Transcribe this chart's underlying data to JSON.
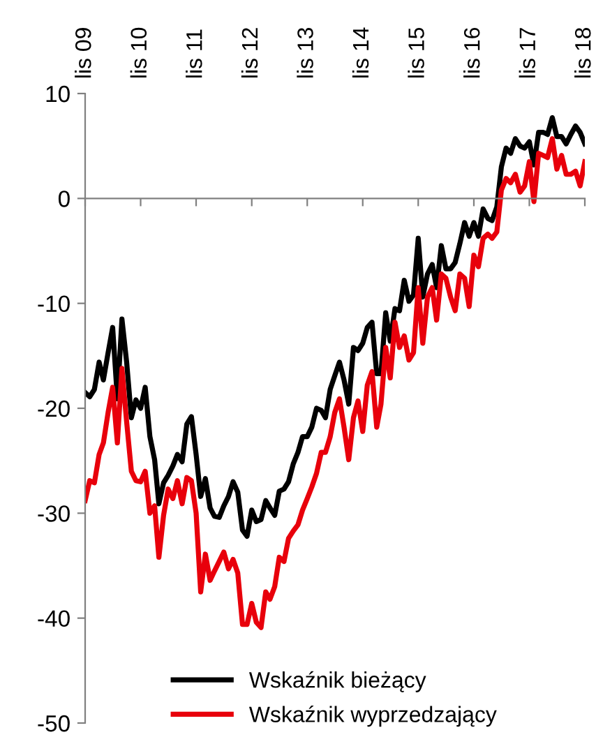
{
  "chart_data": {
    "type": "line",
    "x": [
      "2009-11",
      "2009-12",
      "2010-01",
      "2010-02",
      "2010-03",
      "2010-04",
      "2010-05",
      "2010-06",
      "2010-07",
      "2010-08",
      "2010-09",
      "2010-10",
      "2010-11",
      "2010-12",
      "2011-01",
      "2011-02",
      "2011-03",
      "2011-04",
      "2011-05",
      "2011-06",
      "2011-07",
      "2011-08",
      "2011-09",
      "2011-10",
      "2011-11",
      "2011-12",
      "2012-01",
      "2012-02",
      "2012-03",
      "2012-04",
      "2012-05",
      "2012-06",
      "2012-07",
      "2012-08",
      "2012-09",
      "2012-10",
      "2012-11",
      "2012-12",
      "2013-01",
      "2013-02",
      "2013-03",
      "2013-04",
      "2013-05",
      "2013-06",
      "2013-07",
      "2013-08",
      "2013-09",
      "2013-10",
      "2013-11",
      "2013-12",
      "2014-01",
      "2014-02",
      "2014-03",
      "2014-04",
      "2014-05",
      "2014-06",
      "2014-07",
      "2014-08",
      "2014-09",
      "2014-10",
      "2014-11",
      "2014-12",
      "2015-01",
      "2015-02",
      "2015-03",
      "2015-04",
      "2015-05",
      "2015-06",
      "2015-07",
      "2015-08",
      "2015-09",
      "2015-10",
      "2015-11",
      "2015-12",
      "2016-01",
      "2016-02",
      "2016-03",
      "2016-04",
      "2016-05",
      "2016-06",
      "2016-07",
      "2016-08",
      "2016-09",
      "2016-10",
      "2016-11",
      "2016-12",
      "2017-01",
      "2017-02",
      "2017-03",
      "2017-04",
      "2017-05",
      "2017-06",
      "2017-07",
      "2017-08",
      "2017-09",
      "2017-10",
      "2017-11",
      "2017-12",
      "2018-01",
      "2018-02",
      "2018-03",
      "2018-04",
      "2018-05",
      "2018-06",
      "2018-07",
      "2018-08",
      "2018-09",
      "2018-10",
      "2018-11"
    ],
    "series": [
      {
        "name": "Wskaźnik bieżący",
        "color": "#000000",
        "values": [
          -18.5,
          -18.9,
          -18.2,
          -15.6,
          -17.3,
          -14.7,
          -12.3,
          -19.1,
          -11.5,
          -15.6,
          -20.9,
          -19.2,
          -20,
          -18,
          -22.7,
          -24.9,
          -29.1,
          -27.1,
          -26.4,
          -25.5,
          -24.4,
          -25.1,
          -21.5,
          -20.8,
          -24.4,
          -28.4,
          -26.7,
          -29.5,
          -30.3,
          -30.4,
          -29.3,
          -28.4,
          -27,
          -28,
          -31.6,
          -32.2,
          -29.7,
          -30.8,
          -30.6,
          -28.8,
          -29.5,
          -30.2,
          -27.9,
          -27.7,
          -27,
          -25.3,
          -24.2,
          -22.7,
          -22.7,
          -21.8,
          -20,
          -20.2,
          -20.9,
          -18.2,
          -16.9,
          -15.6,
          -17.3,
          -19.6,
          -14.2,
          -14.5,
          -13.8,
          -12.3,
          -11.8,
          -16.7,
          -16.7,
          -10.9,
          -13.6,
          -10.5,
          -10.7,
          -7.8,
          -9.8,
          -9.2,
          -3.8,
          -9.4,
          -7.2,
          -6.3,
          -8.5,
          -4.5,
          -6.7,
          -6.7,
          -6.1,
          -4.3,
          -2.3,
          -3.6,
          -2.3,
          -3.6,
          -1.0,
          -1.9,
          -2.1,
          -0.8,
          3.0,
          4.8,
          4.3,
          5.7,
          5.0,
          4.8,
          5.4,
          3.2,
          6.3,
          6.3,
          6.1,
          7.7,
          5.9,
          5.9,
          5.2,
          6.1,
          6.9,
          6.3,
          5.2
        ]
      },
      {
        "name": "Wskaźnik wyprzedzający",
        "color": "#e8000b",
        "values": [
          -28.8,
          -26.9,
          -27.1,
          -24.4,
          -23.3,
          -20.4,
          -18,
          -23.3,
          -16.2,
          -21.3,
          -26,
          -26.9,
          -27,
          -26,
          -30,
          -29.3,
          -34.2,
          -30.2,
          -27.7,
          -28.6,
          -26.9,
          -29.1,
          -26.6,
          -26.9,
          -30,
          -37.5,
          -33.9,
          -36.4,
          -35.5,
          -34.6,
          -33.7,
          -35.3,
          -34.4,
          -35.7,
          -40.6,
          -40.6,
          -38.6,
          -40.4,
          -40.9,
          -37.5,
          -38.2,
          -37,
          -34.2,
          -34.6,
          -32.4,
          -31.7,
          -31.1,
          -29.7,
          -28.6,
          -27.5,
          -26.2,
          -24.2,
          -24.2,
          -22.7,
          -20.4,
          -19.1,
          -21.8,
          -24.9,
          -20.9,
          -19.3,
          -22.2,
          -17.8,
          -16.5,
          -21.8,
          -19.6,
          -14.2,
          -17.1,
          -11.8,
          -14.2,
          -13.1,
          -15.4,
          -14.7,
          -8.5,
          -13.8,
          -9.4,
          -8.5,
          -11.6,
          -7.2,
          -7.6,
          -9.4,
          -10.7,
          -7.2,
          -7.6,
          -10.3,
          -5.4,
          -6.5,
          -3.8,
          -3.4,
          -3.8,
          -3.2,
          0.8,
          1.9,
          1.5,
          2.3,
          0.6,
          1.2,
          3.5,
          -0.3,
          4.3,
          4.1,
          3.9,
          5.7,
          2.8,
          4.1,
          2.3,
          2.3,
          2.6,
          1.2,
          3.5
        ]
      }
    ],
    "xlim": [
      "2009-11",
      "2018-11"
    ],
    "xticks": [
      {
        "value": "2009-11",
        "label": "lis 09"
      },
      {
        "value": "2010-11",
        "label": "lis 10"
      },
      {
        "value": "2011-11",
        "label": "lis 11"
      },
      {
        "value": "2012-11",
        "label": "lis 12"
      },
      {
        "value": "2013-11",
        "label": "lis 13"
      },
      {
        "value": "2014-11",
        "label": "lis 14"
      },
      {
        "value": "2015-11",
        "label": "lis 15"
      },
      {
        "value": "2016-11",
        "label": "lis 16"
      },
      {
        "value": "2017-11",
        "label": "lis 17"
      },
      {
        "value": "2018-11",
        "label": "lis 18"
      }
    ],
    "ylim": [
      -50,
      10
    ],
    "yticks": [
      -50,
      -40,
      -30,
      -20,
      -10,
      0,
      10
    ],
    "legend": "bottom",
    "marker": "none",
    "line_style": "solid"
  }
}
